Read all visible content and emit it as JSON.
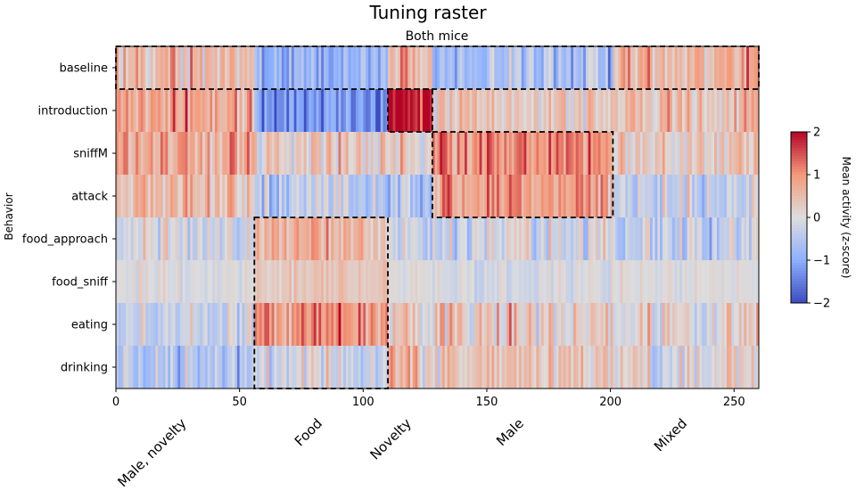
{
  "chart_data": {
    "type": "heatmap",
    "title": "Tuning raster",
    "subtitle": "Both mice",
    "ylabel": "Behavior",
    "xlim": [
      0,
      260
    ],
    "x_ticks": [
      0,
      50,
      100,
      150,
      200,
      250
    ],
    "rows": [
      {
        "label": "baseline",
        "color": "#1f77b4"
      },
      {
        "label": "introduction",
        "color": "#2ca02c"
      },
      {
        "label": "sniffM",
        "color": "#d62728"
      },
      {
        "label": "attack",
        "color": "#d62728"
      },
      {
        "label": "food_approach",
        "color": "#ff7f0e"
      },
      {
        "label": "food_sniff",
        "color": "#ff7f0e"
      },
      {
        "label": "eating",
        "color": "#ff7f0e"
      },
      {
        "label": "drinking",
        "color": "#ff7f0e"
      }
    ],
    "column_groups": [
      {
        "label": "Male, novelty",
        "start": 0,
        "end": 56
      },
      {
        "label": "Food",
        "start": 56,
        "end": 110
      },
      {
        "label": "Novelty",
        "start": 110,
        "end": 128
      },
      {
        "label": "Male",
        "start": 128,
        "end": 201
      },
      {
        "label": "Mixed",
        "start": 201,
        "end": 260
      }
    ],
    "group_row_means": [
      [
        0.5,
        0.8,
        0.8,
        0.5,
        -0.2,
        0.0,
        -0.3,
        -0.6
      ],
      [
        -0.9,
        -1.3,
        0.2,
        -0.4,
        0.6,
        0.3,
        1.0,
        -0.2
      ],
      [
        0.6,
        2.0,
        0.1,
        -0.6,
        -0.3,
        0.0,
        0.2,
        0.4
      ],
      [
        -0.6,
        0.3,
        1.1,
        1.0,
        -0.1,
        -0.1,
        0.3,
        0.4
      ],
      [
        0.7,
        0.4,
        0.4,
        -0.3,
        -0.3,
        0.0,
        0.1,
        0.1
      ]
    ],
    "colorbar": {
      "label": "Mean activity (z-score)",
      "min": -2,
      "max": 2,
      "ticks": [
        2,
        1,
        0,
        -1,
        -2
      ],
      "tick_labels": [
        "2",
        "1",
        "0",
        "−1",
        "−2"
      ],
      "colormap": "coolwarm"
    },
    "boxes": [
      {
        "row_start": 0,
        "row_end": 1,
        "col_start": 0,
        "col_end": 260
      },
      {
        "row_start": 1,
        "row_end": 2,
        "col_start": 110,
        "col_end": 128
      },
      {
        "row_start": 2,
        "row_end": 4,
        "col_start": 128,
        "col_end": 201
      },
      {
        "row_start": 4,
        "row_end": 8,
        "col_start": 56,
        "col_end": 110
      }
    ],
    "grid": false
  }
}
